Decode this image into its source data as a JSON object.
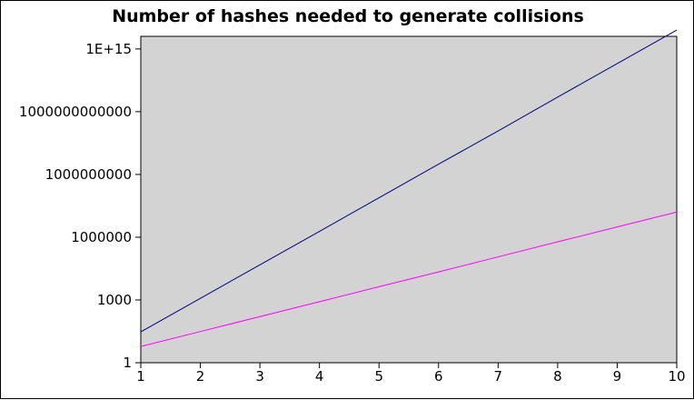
{
  "chart_data": {
    "type": "line",
    "title": "Number of hashes needed to generate collisions",
    "xlabel": "",
    "ylabel": "",
    "x": [
      1,
      2,
      3,
      4,
      5,
      6,
      7,
      8,
      9,
      10
    ],
    "xlim": [
      1,
      10
    ],
    "x_ticks": [
      "1",
      "2",
      "3",
      "4",
      "5",
      "6",
      "7",
      "8",
      "9",
      "10"
    ],
    "y_scale": "log",
    "ylim": [
      1,
      4000000000000000
    ],
    "y_ticks": [
      {
        "value": 1,
        "label": "1"
      },
      {
        "value": 1000,
        "label": "1000"
      },
      {
        "value": 1000000,
        "label": "1000000"
      },
      {
        "value": 1000000000,
        "label": "1000000000"
      },
      {
        "value": 1000000000000,
        "label": "1000000000000"
      },
      {
        "value": 1000000000000000,
        "label": "1E+15"
      }
    ],
    "grid": false,
    "legend": "none",
    "series": [
      {
        "color": "#000080",
        "values": [
          30,
          1200,
          48000,
          1900000,
          77000000,
          3100000000,
          120000000000,
          5000000000000,
          200000000000000,
          8000000000000000
        ]
      },
      {
        "color": "#ff00ff",
        "values": [
          6,
          31,
          160,
          830,
          4300,
          22000,
          115000,
          600000,
          3100000,
          16000000
        ]
      }
    ],
    "colors": {
      "plot_background": "#d3d3d3",
      "axis": "#000000"
    }
  }
}
